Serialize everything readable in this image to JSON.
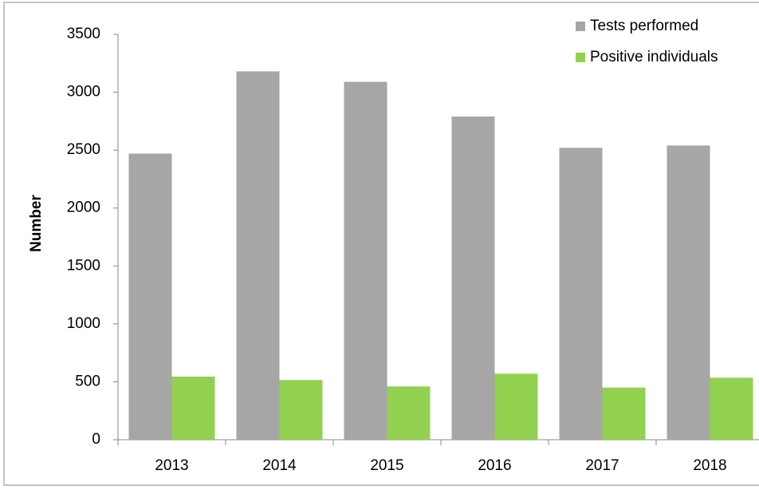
{
  "chart_data": {
    "type": "bar",
    "y_label": "Number",
    "categories": [
      "2013",
      "2014",
      "2015",
      "2016",
      "2017",
      "2018"
    ],
    "series": [
      {
        "name": "Tests performed",
        "color": "#a6a6a6",
        "values": [
          2470,
          3180,
          3090,
          2790,
          2520,
          2540
        ]
      },
      {
        "name": "Positive individuals",
        "color": "#92d050",
        "values": [
          545,
          515,
          460,
          570,
          450,
          535
        ]
      }
    ],
    "ylim": [
      0,
      3500
    ],
    "yticks": [
      0,
      500,
      1000,
      1500,
      2000,
      2500,
      3000,
      3500
    ],
    "grid": false,
    "legend": "top-right"
  }
}
